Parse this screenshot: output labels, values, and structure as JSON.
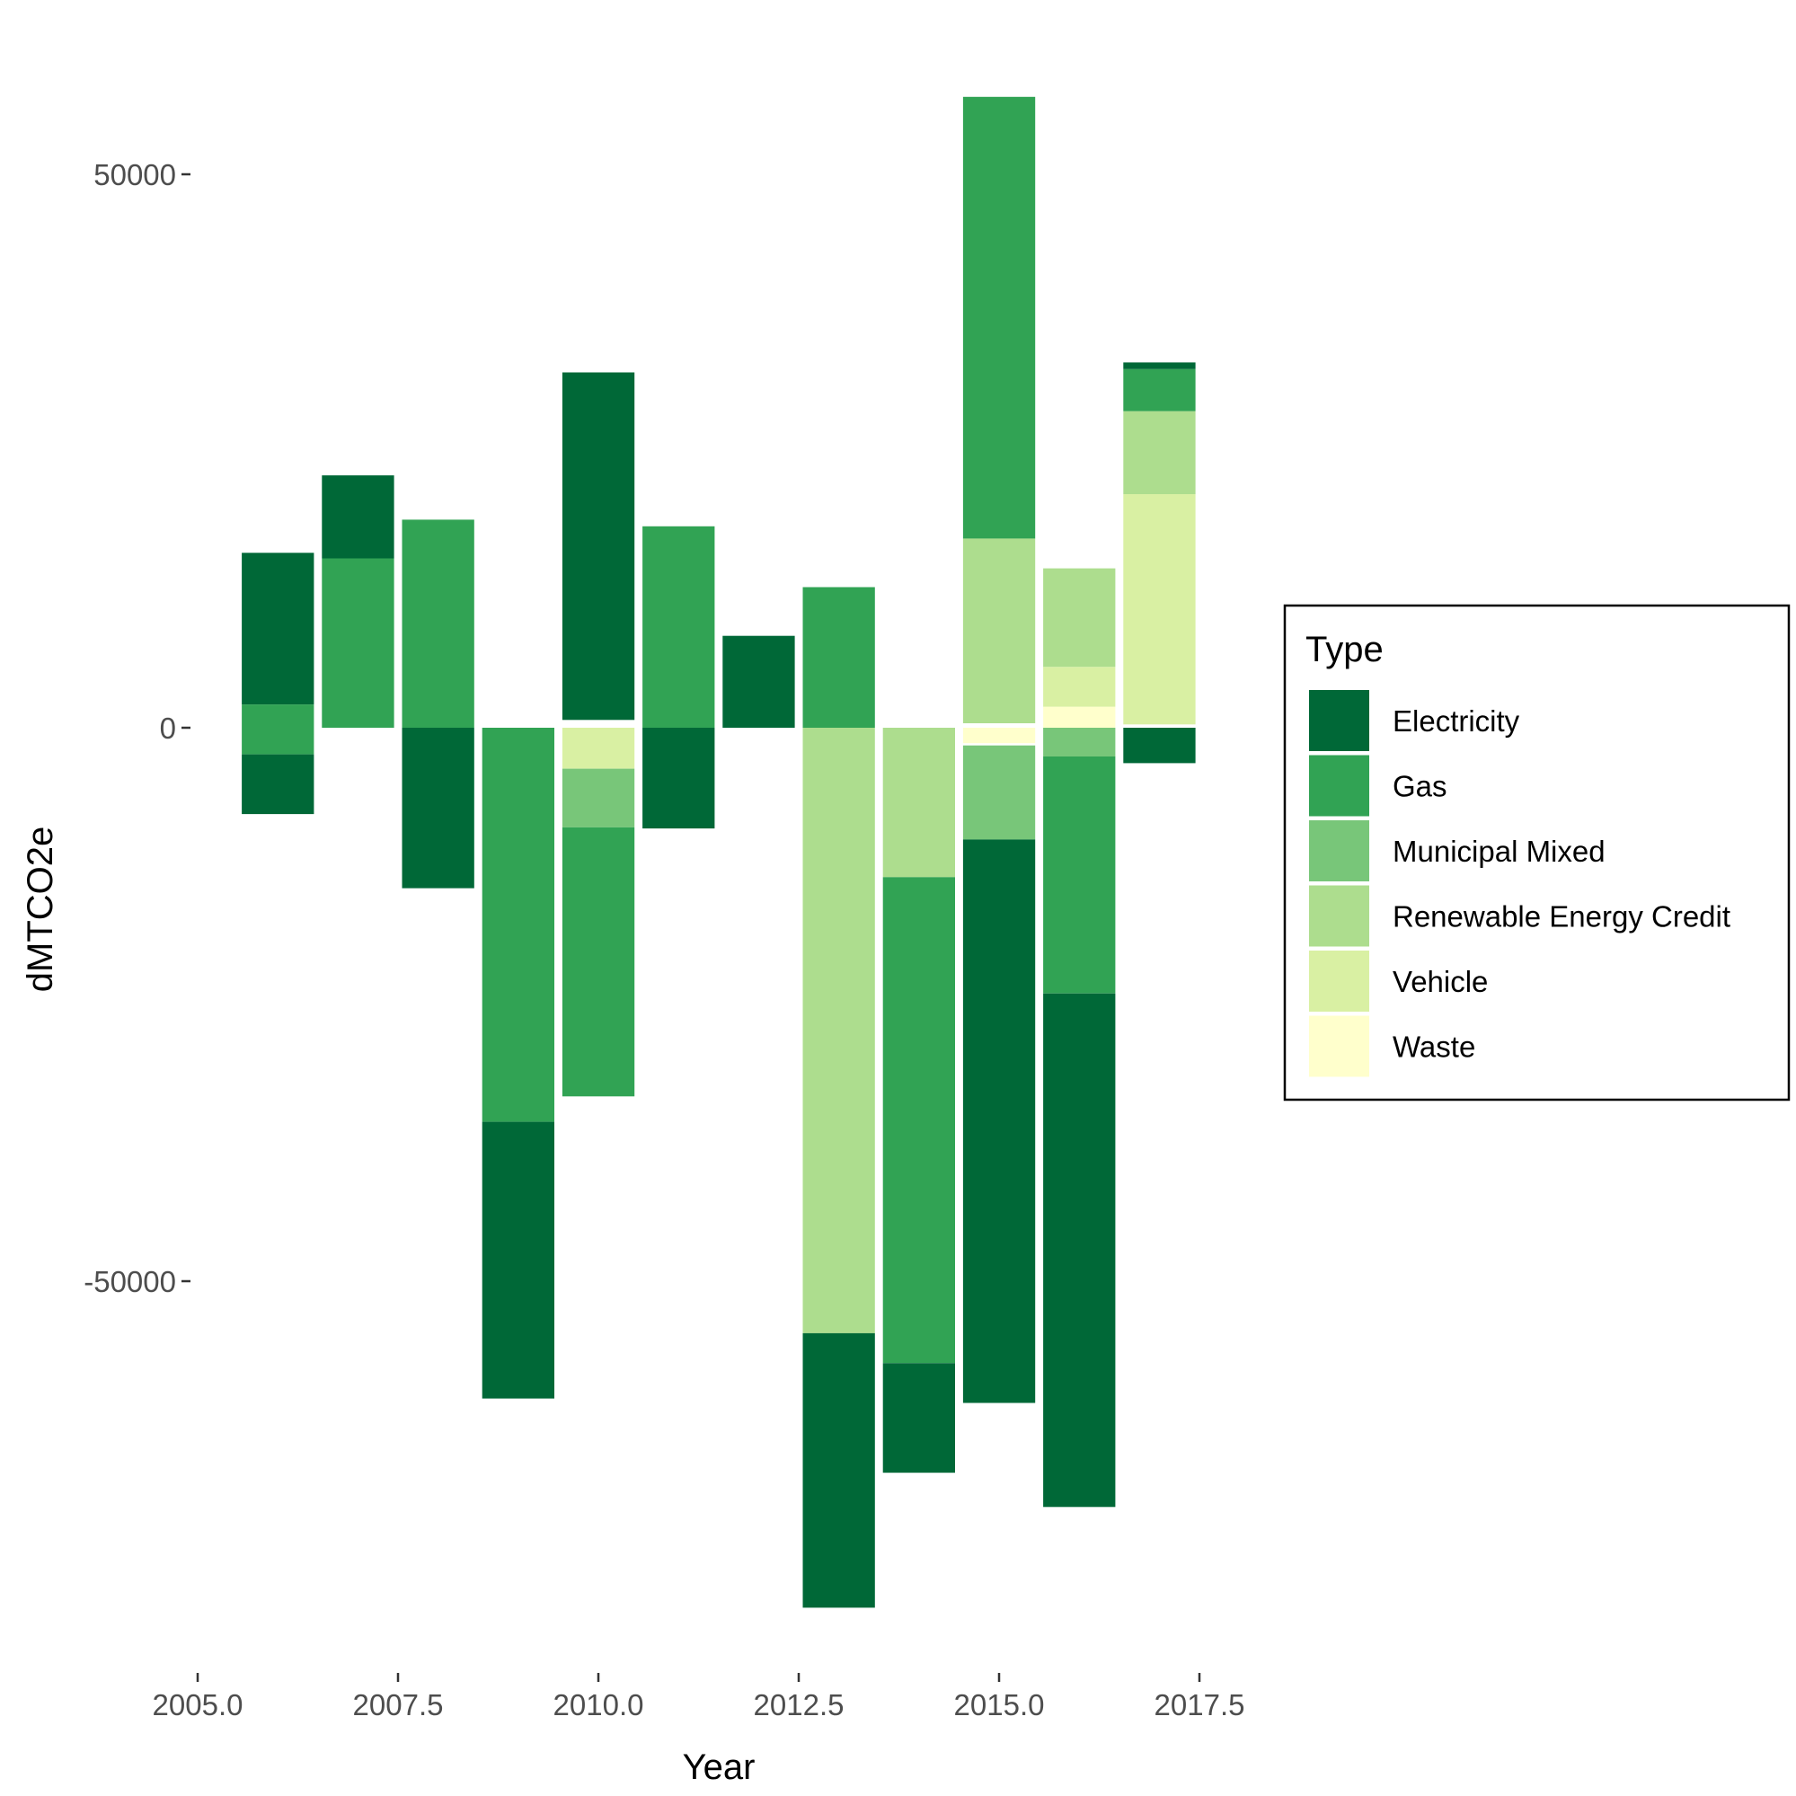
{
  "chart_data": {
    "type": "bar",
    "stacked": true,
    "xlabel": "Year",
    "ylabel": "dMTCO2e",
    "xlim": [
      2005,
      2018
    ],
    "ylim": [
      -85000,
      57000
    ],
    "x_ticks": [
      {
        "value": 2005.0,
        "label": "2005.0"
      },
      {
        "value": 2007.5,
        "label": "2007.5"
      },
      {
        "value": 2010.0,
        "label": "2010.0"
      },
      {
        "value": 2012.5,
        "label": "2012.5"
      },
      {
        "value": 2015.0,
        "label": "2015.0"
      },
      {
        "value": 2017.5,
        "label": "2017.5"
      }
    ],
    "y_ticks": [
      {
        "value": 50000,
        "label": "50000"
      },
      {
        "value": 0,
        "label": "0"
      },
      {
        "value": -50000,
        "label": "-50000"
      }
    ],
    "grid": false,
    "legend_position": "right",
    "legend_title": "Type",
    "series": [
      {
        "name": "Electricity",
        "color": "#006837"
      },
      {
        "name": "Gas",
        "color": "#31a354"
      },
      {
        "name": "Municipal Mixed",
        "color": "#78c679"
      },
      {
        "name": "Renewable Energy Credit",
        "color": "#addd8e"
      },
      {
        "name": "Vehicle",
        "color": "#d9f0a3"
      },
      {
        "name": "Waste",
        "color": "#ffffcc"
      }
    ],
    "bar_width": 0.9,
    "bars": [
      {
        "x": 2006,
        "segments": [
          {
            "type": "Electricity",
            "y0": 2100,
            "y1": 15800
          },
          {
            "type": "Gas",
            "y0": -2400,
            "y1": 2100
          },
          {
            "type": "Electricity",
            "y0": -7800,
            "y1": -2400
          }
        ]
      },
      {
        "x": 2007,
        "segments": [
          {
            "type": "Gas",
            "y0": 0,
            "y1": 15300
          },
          {
            "type": "Electricity",
            "y0": 15300,
            "y1": 22800
          }
        ]
      },
      {
        "x": 2008,
        "segments": [
          {
            "type": "Gas",
            "y0": 0,
            "y1": 18800
          },
          {
            "type": "Electricity",
            "y0": -14500,
            "y1": 0
          }
        ]
      },
      {
        "x": 2009,
        "segments": [
          {
            "type": "Gas",
            "y0": -35600,
            "y1": 0
          },
          {
            "type": "Electricity",
            "y0": -60600,
            "y1": -35600
          }
        ]
      },
      {
        "x": 2010,
        "segments": [
          {
            "type": "Electricity",
            "y0": 700,
            "y1": 32100
          },
          {
            "type": "Vehicle",
            "y0": -3700,
            "y1": 0
          },
          {
            "type": "Municipal Mixed",
            "y0": -9000,
            "y1": -3700
          },
          {
            "type": "Gas",
            "y0": -33300,
            "y1": -9000
          }
        ]
      },
      {
        "x": 2011,
        "segments": [
          {
            "type": "Gas",
            "y0": 0,
            "y1": 18200
          },
          {
            "type": "Electricity",
            "y0": -9100,
            "y1": 0
          }
        ]
      },
      {
        "x": 2012,
        "segments": [
          {
            "type": "Electricity",
            "y0": 0,
            "y1": 8300
          }
        ]
      },
      {
        "x": 2013,
        "segments": [
          {
            "type": "Gas",
            "y0": 0,
            "y1": 12700
          },
          {
            "type": "Renewable Energy Credit",
            "y0": -54700,
            "y1": 0
          },
          {
            "type": "Electricity",
            "y0": -79500,
            "y1": -54700
          }
        ]
      },
      {
        "x": 2014,
        "segments": [
          {
            "type": "Renewable Energy Credit",
            "y0": -13500,
            "y1": 0
          },
          {
            "type": "Gas",
            "y0": -57400,
            "y1": -13500
          },
          {
            "type": "Electricity",
            "y0": -67300,
            "y1": -57400
          }
        ]
      },
      {
        "x": 2015,
        "segments": [
          {
            "type": "Renewable Energy Credit",
            "y0": 400,
            "y1": 17100
          },
          {
            "type": "Gas",
            "y0": 17100,
            "y1": 57000
          },
          {
            "type": "Waste",
            "y0": -1400,
            "y1": 0
          },
          {
            "type": "Municipal Mixed",
            "y0": -10100,
            "y1": -1600
          },
          {
            "type": "Electricity",
            "y0": -61000,
            "y1": -10100
          }
        ]
      },
      {
        "x": 2016,
        "segments": [
          {
            "type": "Waste",
            "y0": 0,
            "y1": 1900
          },
          {
            "type": "Vehicle",
            "y0": 1900,
            "y1": 5500
          },
          {
            "type": "Renewable Energy Credit",
            "y0": 5500,
            "y1": 14400
          },
          {
            "type": "Municipal Mixed",
            "y0": -2600,
            "y1": 0
          },
          {
            "type": "Gas",
            "y0": -24000,
            "y1": -2600
          },
          {
            "type": "Electricity",
            "y0": -70400,
            "y1": -24000
          }
        ]
      },
      {
        "x": 2017,
        "segments": [
          {
            "type": "Vehicle",
            "y0": 300,
            "y1": 21100
          },
          {
            "type": "Renewable Energy Credit",
            "y0": 21100,
            "y1": 28600
          },
          {
            "type": "Gas",
            "y0": 28600,
            "y1": 32400
          },
          {
            "type": "Electricity",
            "y0": 32400,
            "y1": 33000
          },
          {
            "type": "Electricity",
            "y0": -3200,
            "y1": 0
          }
        ]
      }
    ]
  }
}
